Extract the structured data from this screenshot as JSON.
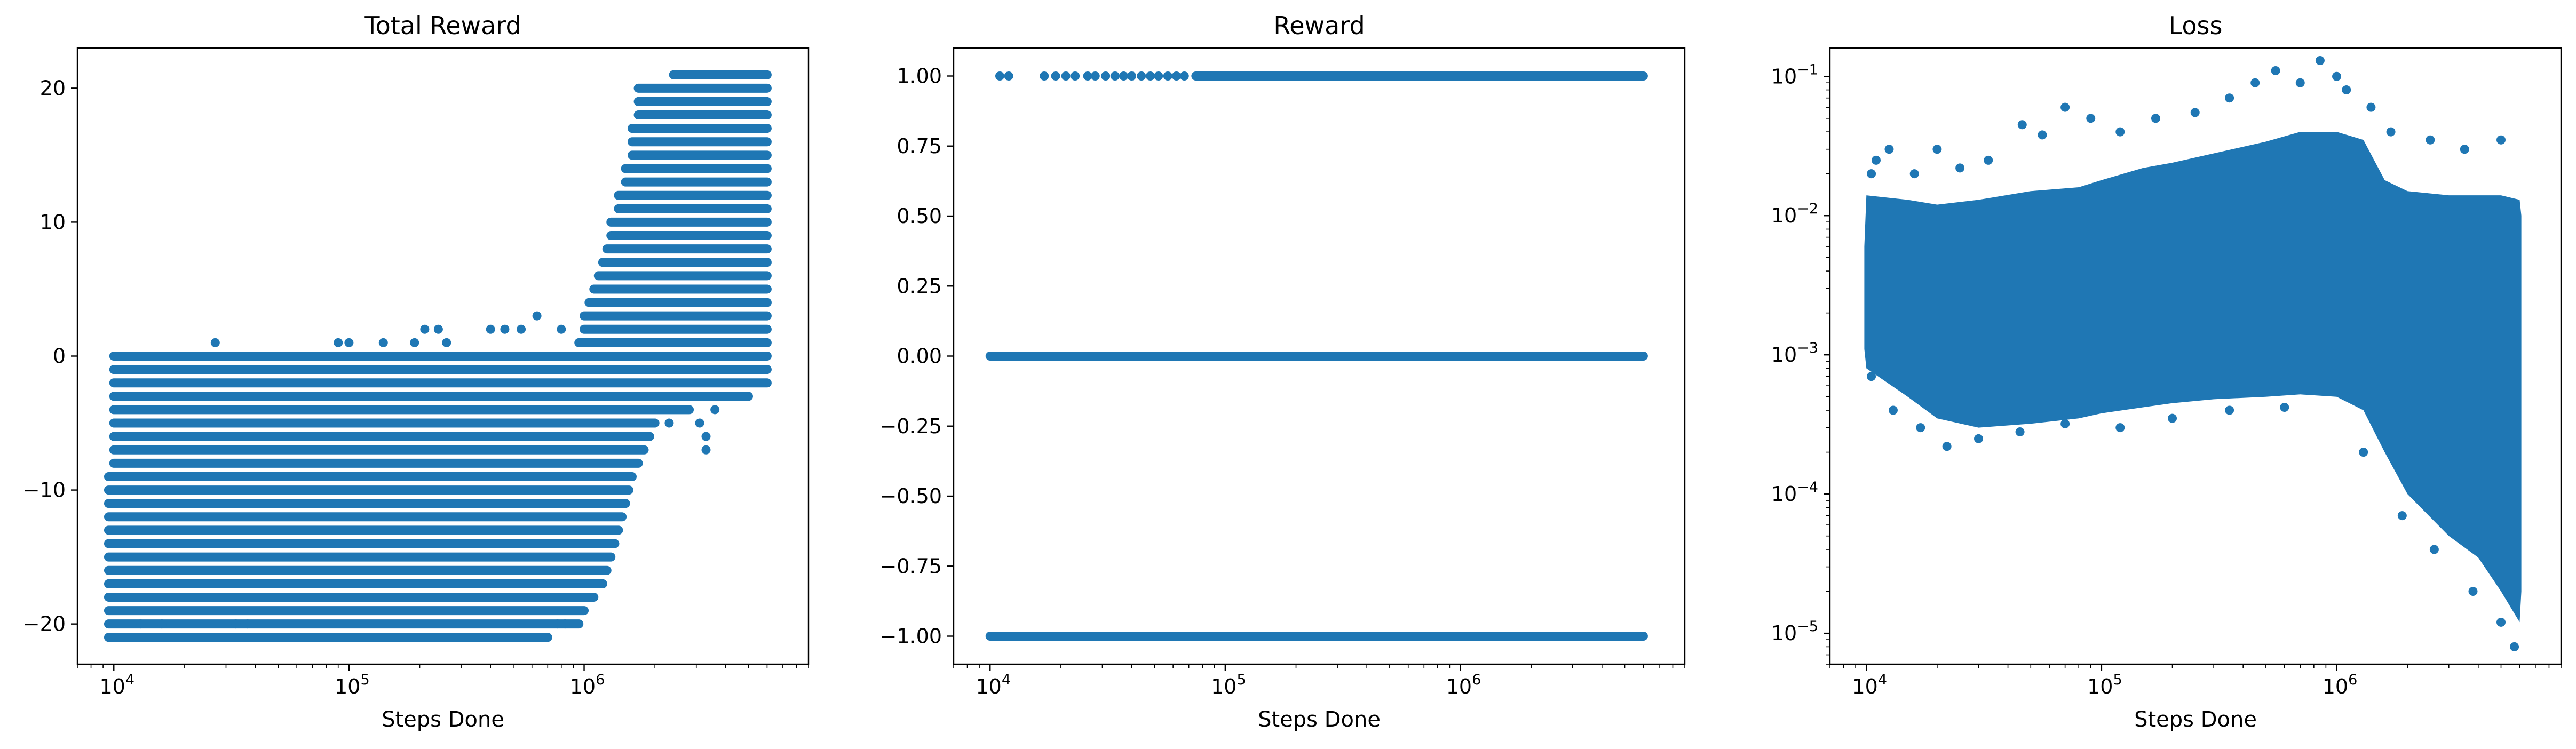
{
  "chart_data": [
    {
      "type": "scatter",
      "title": "Total Reward",
      "xlabel": "Steps Done",
      "ylabel": "",
      "xscale": "log",
      "yscale": "linear",
      "xlim": [
        7000,
        9000000
      ],
      "ylim": [
        -23,
        23
      ],
      "yticks": [
        -20,
        -10,
        0,
        10,
        20
      ],
      "yticklabels": [
        "−20",
        "−10",
        "0",
        "10",
        "20"
      ],
      "xticklabels": [
        "10",
        "10",
        "10"
      ],
      "xtickexponents": [
        "4",
        "5",
        "6"
      ],
      "grid": false,
      "color": "#1f77b4",
      "bands": [
        {
          "y": 21,
          "x_from": 2400000,
          "x_to": 6000000
        },
        {
          "y": 20,
          "x_from": 1700000,
          "x_to": 6000000
        },
        {
          "y": 19,
          "x_from": 1700000,
          "x_to": 6000000
        },
        {
          "y": 18,
          "x_from": 1700000,
          "x_to": 6000000
        },
        {
          "y": 17,
          "x_from": 1600000,
          "x_to": 6000000
        },
        {
          "y": 16,
          "x_from": 1600000,
          "x_to": 6000000
        },
        {
          "y": 15,
          "x_from": 1600000,
          "x_to": 6000000
        },
        {
          "y": 14,
          "x_from": 1500000,
          "x_to": 6000000
        },
        {
          "y": 13,
          "x_from": 1500000,
          "x_to": 6000000
        },
        {
          "y": 12,
          "x_from": 1400000,
          "x_to": 6000000
        },
        {
          "y": 11,
          "x_from": 1400000,
          "x_to": 6000000
        },
        {
          "y": 10,
          "x_from": 1300000,
          "x_to": 6000000
        },
        {
          "y": 9,
          "x_from": 1300000,
          "x_to": 6000000
        },
        {
          "y": 8,
          "x_from": 1250000,
          "x_to": 6000000
        },
        {
          "y": 7,
          "x_from": 1200000,
          "x_to": 6000000
        },
        {
          "y": 6,
          "x_from": 1150000,
          "x_to": 6000000
        },
        {
          "y": 5,
          "x_from": 1100000,
          "x_to": 6000000
        },
        {
          "y": 4,
          "x_from": 1050000,
          "x_to": 6000000
        },
        {
          "y": 3,
          "x_from": 1000000,
          "x_to": 6000000
        },
        {
          "y": 2,
          "x_from": 1000000,
          "x_to": 6000000
        },
        {
          "y": 1,
          "x_from": 950000,
          "x_to": 6000000
        },
        {
          "y": 0,
          "x_from": 10000,
          "x_to": 6000000
        },
        {
          "y": -1,
          "x_from": 10000,
          "x_to": 6000000
        },
        {
          "y": -2,
          "x_from": 10000,
          "x_to": 6000000
        },
        {
          "y": -3,
          "x_from": 10000,
          "x_to": 5000000
        },
        {
          "y": -4,
          "x_from": 10000,
          "x_to": 2800000
        },
        {
          "y": -5,
          "x_from": 10000,
          "x_to": 2000000
        },
        {
          "y": -6,
          "x_from": 10000,
          "x_to": 1900000
        },
        {
          "y": -7,
          "x_from": 10000,
          "x_to": 1800000
        },
        {
          "y": -8,
          "x_from": 10000,
          "x_to": 1700000
        },
        {
          "y": -9,
          "x_from": 9500,
          "x_to": 1600000
        },
        {
          "y": -10,
          "x_from": 9500,
          "x_to": 1550000
        },
        {
          "y": -11,
          "x_from": 9500,
          "x_to": 1500000
        },
        {
          "y": -12,
          "x_from": 9500,
          "x_to": 1450000
        },
        {
          "y": -13,
          "x_from": 9500,
          "x_to": 1400000
        },
        {
          "y": -14,
          "x_from": 9500,
          "x_to": 1350000
        },
        {
          "y": -15,
          "x_from": 9500,
          "x_to": 1300000
        },
        {
          "y": -16,
          "x_from": 9500,
          "x_to": 1250000
        },
        {
          "y": -17,
          "x_from": 9500,
          "x_to": 1200000
        },
        {
          "y": -18,
          "x_from": 9500,
          "x_to": 1100000
        },
        {
          "y": -19,
          "x_from": 9500,
          "x_to": 1000000
        },
        {
          "y": -20,
          "x_from": 9500,
          "x_to": 950000
        },
        {
          "y": -21,
          "x_from": 9500,
          "x_to": 700000
        }
      ],
      "points": [
        {
          "x": 27000,
          "y": 1
        },
        {
          "x": 90000,
          "y": 1
        },
        {
          "x": 100000,
          "y": 1
        },
        {
          "x": 140000,
          "y": 1
        },
        {
          "x": 190000,
          "y": 1
        },
        {
          "x": 210000,
          "y": 2
        },
        {
          "x": 240000,
          "y": 2
        },
        {
          "x": 260000,
          "y": 1
        },
        {
          "x": 400000,
          "y": 2
        },
        {
          "x": 460000,
          "y": 2
        },
        {
          "x": 540000,
          "y": 2
        },
        {
          "x": 630000,
          "y": 3
        },
        {
          "x": 800000,
          "y": 2
        },
        {
          "x": 1200000,
          "y": 0
        },
        {
          "x": 3100000,
          "y": -5
        },
        {
          "x": 3300000,
          "y": -6
        },
        {
          "x": 3300000,
          "y": -7
        },
        {
          "x": 2300000,
          "y": -5
        },
        {
          "x": 3600000,
          "y": -4
        },
        {
          "x": 13000,
          "y": -20
        },
        {
          "x": 16000,
          "y": -20
        },
        {
          "x": 33000,
          "y": -20
        },
        {
          "x": 37000,
          "y": -20
        },
        {
          "x": 770000,
          "y": -20
        },
        {
          "x": 830000,
          "y": -20
        }
      ]
    },
    {
      "type": "scatter",
      "title": "Reward",
      "xlabel": "Steps Done",
      "ylabel": "",
      "xscale": "log",
      "yscale": "linear",
      "xlim": [
        7000,
        9000000
      ],
      "ylim": [
        -1.1,
        1.1
      ],
      "yticks": [
        -1.0,
        -0.75,
        -0.5,
        -0.25,
        0.0,
        0.25,
        0.5,
        0.75,
        1.0
      ],
      "yticklabels": [
        "−1.00",
        "−0.75",
        "−0.50",
        "−0.25",
        "0.00",
        "0.25",
        "0.50",
        "0.75",
        "1.00"
      ],
      "xticklabels": [
        "10",
        "10",
        "10"
      ],
      "xtickexponents": [
        "4",
        "5",
        "6"
      ],
      "grid": false,
      "color": "#1f77b4",
      "bands": [
        {
          "y": 1,
          "x_from": 75000,
          "x_to": 6000000
        },
        {
          "y": 0,
          "x_from": 10000,
          "x_to": 6000000
        },
        {
          "y": -1,
          "x_from": 10000,
          "x_to": 6000000
        }
      ],
      "points": [
        {
          "x": 11000,
          "y": 1
        },
        {
          "x": 12000,
          "y": 1
        },
        {
          "x": 17000,
          "y": 1
        },
        {
          "x": 19000,
          "y": 1
        },
        {
          "x": 21000,
          "y": 1
        },
        {
          "x": 23000,
          "y": 1
        },
        {
          "x": 26000,
          "y": 1
        },
        {
          "x": 28000,
          "y": 1
        },
        {
          "x": 31000,
          "y": 1
        },
        {
          "x": 34000,
          "y": 1
        },
        {
          "x": 37000,
          "y": 1
        },
        {
          "x": 40000,
          "y": 1
        },
        {
          "x": 44000,
          "y": 1
        },
        {
          "x": 48000,
          "y": 1
        },
        {
          "x": 52000,
          "y": 1
        },
        {
          "x": 57000,
          "y": 1
        },
        {
          "x": 62000,
          "y": 1
        },
        {
          "x": 67000,
          "y": 1
        }
      ]
    },
    {
      "type": "scatter",
      "title": "Loss",
      "xlabel": "Steps Done",
      "ylabel": "",
      "xscale": "log",
      "yscale": "log",
      "xlim": [
        7000,
        9000000
      ],
      "ylim": [
        6e-06,
        0.16
      ],
      "yticks": [
        1e-05,
        0.0001,
        0.001,
        0.01,
        0.1
      ],
      "yticklabels": [
        "10",
        "10",
        "10",
        "10",
        "10"
      ],
      "ytickexponents": [
        "−5",
        "−4",
        "−3",
        "−2",
        "−1"
      ],
      "xticklabels": [
        "10",
        "10",
        "10"
      ],
      "xtickexponents": [
        "4",
        "5",
        "6"
      ],
      "grid": false,
      "color": "#1f77b4",
      "envelope": {
        "x": [
          9800,
          10000,
          15000,
          20000,
          30000,
          50000,
          80000,
          100000,
          150000,
          200000,
          300000,
          500000,
          700000,
          1000000,
          1300000,
          1600000,
          2000000,
          3000000,
          4000000,
          5000000,
          6000000,
          6100000
        ],
        "upper": [
          0.006,
          0.014,
          0.013,
          0.012,
          0.013,
          0.015,
          0.016,
          0.018,
          0.022,
          0.024,
          0.028,
          0.034,
          0.04,
          0.04,
          0.035,
          0.018,
          0.015,
          0.014,
          0.014,
          0.014,
          0.013,
          0.01
        ],
        "lower": [
          0.0011,
          0.0008,
          0.0005,
          0.00035,
          0.0003,
          0.00032,
          0.00035,
          0.00038,
          0.00042,
          0.00045,
          0.00048,
          0.0005,
          0.00052,
          0.0005,
          0.0004,
          0.0002,
          0.0001,
          5e-05,
          3.5e-05,
          2e-05,
          1.2e-05,
          2e-05
        ]
      },
      "points": [
        {
          "x": 10500,
          "y": 0.02
        },
        {
          "x": 11000,
          "y": 0.025
        },
        {
          "x": 12500,
          "y": 0.03
        },
        {
          "x": 16000,
          "y": 0.02
        },
        {
          "x": 20000,
          "y": 0.03
        },
        {
          "x": 25000,
          "y": 0.022
        },
        {
          "x": 33000,
          "y": 0.025
        },
        {
          "x": 46000,
          "y": 0.045
        },
        {
          "x": 56000,
          "y": 0.038
        },
        {
          "x": 70000,
          "y": 0.06
        },
        {
          "x": 90000,
          "y": 0.05
        },
        {
          "x": 120000,
          "y": 0.04
        },
        {
          "x": 170000,
          "y": 0.05
        },
        {
          "x": 250000,
          "y": 0.055
        },
        {
          "x": 350000,
          "y": 0.07
        },
        {
          "x": 450000,
          "y": 0.09
        },
        {
          "x": 550000,
          "y": 0.11
        },
        {
          "x": 700000,
          "y": 0.09
        },
        {
          "x": 850000,
          "y": 0.13
        },
        {
          "x": 1000000,
          "y": 0.1
        },
        {
          "x": 1100000,
          "y": 0.08
        },
        {
          "x": 1400000,
          "y": 0.06
        },
        {
          "x": 1700000,
          "y": 0.04
        },
        {
          "x": 2500000,
          "y": 0.035
        },
        {
          "x": 3500000,
          "y": 0.03
        },
        {
          "x": 5000000,
          "y": 0.035
        },
        {
          "x": 10500,
          "y": 0.0007
        },
        {
          "x": 13000,
          "y": 0.0004
        },
        {
          "x": 17000,
          "y": 0.0003
        },
        {
          "x": 22000,
          "y": 0.00022
        },
        {
          "x": 30000,
          "y": 0.00025
        },
        {
          "x": 45000,
          "y": 0.00028
        },
        {
          "x": 70000,
          "y": 0.00032
        },
        {
          "x": 120000,
          "y": 0.0003
        },
        {
          "x": 200000,
          "y": 0.00035
        },
        {
          "x": 350000,
          "y": 0.0004
        },
        {
          "x": 600000,
          "y": 0.00042
        },
        {
          "x": 1300000,
          "y": 0.0002
        },
        {
          "x": 1900000,
          "y": 7e-05
        },
        {
          "x": 2600000,
          "y": 4e-05
        },
        {
          "x": 3800000,
          "y": 2e-05
        },
        {
          "x": 5000000,
          "y": 1.2e-05
        },
        {
          "x": 5700000,
          "y": 8e-06
        }
      ]
    }
  ]
}
